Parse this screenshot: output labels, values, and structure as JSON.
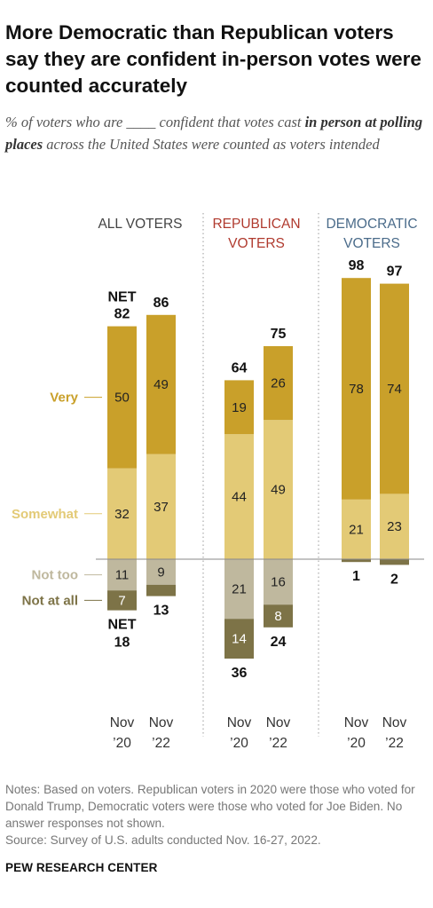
{
  "title": "More Democratic than Republican voters say they are confident in-person votes were counted accurately",
  "subtitle": {
    "part1": "% of voters who are ____ confident that votes cast ",
    "bold": "in person at polling places",
    "part2": " across the United States were counted as voters intended"
  },
  "notes": {
    "line1": "Notes: Based on voters. Republican voters in 2020 were those who voted for Donald Trump, Democratic voters were those who voted for Joe Biden. No answer responses not shown.",
    "source": "Source: Survey of U.S. adults conducted Nov. 16-27, 2022."
  },
  "brand": "PEW RESEARCH CENTER",
  "colors": {
    "very": "#C9A02A",
    "somewhat": "#E3CA76",
    "not_too": "#BFB89E",
    "not_at_all": "#7D7347",
    "republican_header": "#B03A2E",
    "democratic_header": "#4A6B8A",
    "all_header": "#444444"
  },
  "chart_data": {
    "type": "bar",
    "stacked": "diverging",
    "row_labels": {
      "very": "Very",
      "somewhat": "Somewhat",
      "not_too": "Not too",
      "not_at_all": "Not at all"
    },
    "net_label": "NET",
    "groups": [
      {
        "name": "ALL VOTERS",
        "bars": [
          {
            "period": [
              "Nov",
              "’20"
            ],
            "very": 50,
            "somewhat": 32,
            "not_too": 11,
            "not_at_all": 7,
            "net_confident": 82,
            "net_not": 18,
            "net_tag": true
          },
          {
            "period": [
              "Nov",
              "’22"
            ],
            "very": 49,
            "somewhat": 37,
            "not_too": 9,
            "not_at_all": null,
            "net_confident": 86,
            "net_not": 13,
            "net_tag": false
          }
        ]
      },
      {
        "name": "REPUBLICAN VOTERS",
        "bars": [
          {
            "period": [
              "Nov",
              "’20"
            ],
            "very": 19,
            "somewhat": 44,
            "not_too": 21,
            "not_at_all": 14,
            "net_confident": 64,
            "net_not": 36,
            "net_tag": false
          },
          {
            "period": [
              "Nov",
              "’22"
            ],
            "very": 26,
            "somewhat": 49,
            "not_too": 16,
            "not_at_all": 8,
            "net_confident": 75,
            "net_not": 24,
            "net_tag": false
          }
        ]
      },
      {
        "name": "DEMOCRATIC VOTERS",
        "bars": [
          {
            "period": [
              "Nov",
              "’20"
            ],
            "very": 78,
            "somewhat": 21,
            "not_too": null,
            "not_at_all": null,
            "net_confident": 98,
            "net_not": 1,
            "net_tag": false
          },
          {
            "period": [
              "Nov",
              "’22"
            ],
            "very": 74,
            "somewhat": 23,
            "not_too": null,
            "not_at_all": null,
            "net_confident": 97,
            "net_not": 2,
            "net_tag": false
          }
        ]
      }
    ]
  }
}
